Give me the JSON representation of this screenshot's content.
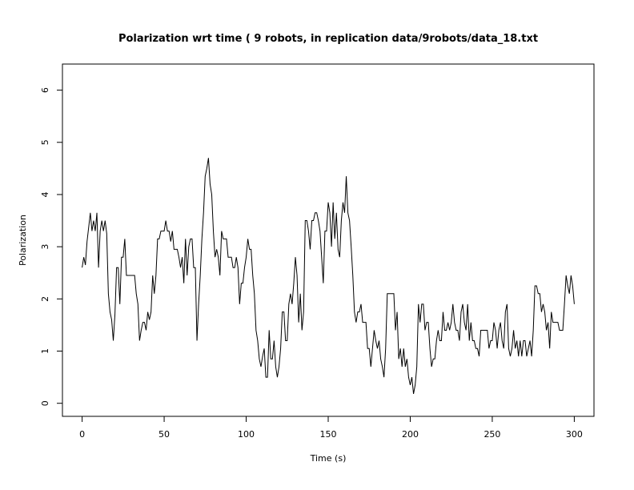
{
  "chart_data": {
    "type": "line",
    "title": "Polarization wrt time ( 9 robots, in replication  data/9robots/data_18.txt",
    "x_label": "Time (s)",
    "y_label": "Polarization",
    "xlim": [
      -12,
      312
    ],
    "ylim": [
      -0.25,
      6.5
    ],
    "xticks": [
      0,
      50,
      100,
      150,
      200,
      250,
      300
    ],
    "yticks": [
      0,
      1,
      2,
      3,
      4,
      5,
      6
    ],
    "grid": false,
    "x": [
      0,
      1,
      2,
      3,
      5,
      6,
      7,
      8,
      9,
      10,
      11,
      12,
      13,
      14,
      15,
      16,
      17,
      18,
      19,
      20,
      21,
      22,
      23,
      24,
      25,
      26,
      27,
      30,
      32,
      33,
      34,
      35,
      36,
      37,
      38,
      39,
      40,
      41,
      42,
      43,
      44,
      45,
      46,
      47,
      48,
      50,
      51,
      52,
      53,
      54,
      55,
      56,
      58,
      59,
      60,
      61,
      62,
      63,
      64,
      65,
      66,
      67,
      68,
      69,
      70,
      71,
      72,
      73,
      74,
      75,
      76,
      77,
      78,
      79,
      80,
      81,
      82,
      83,
      84,
      85,
      86,
      87,
      88,
      89,
      90,
      91,
      92,
      93,
      94,
      95,
      96,
      97,
      98,
      99,
      100,
      101,
      102,
      103,
      104,
      105,
      106,
      107,
      108,
      109,
      110,
      111,
      112,
      113,
      114,
      115,
      116,
      117,
      118,
      119,
      120,
      121,
      122,
      123,
      124,
      125,
      126,
      127,
      128,
      129,
      130,
      131,
      132,
      133,
      134,
      135,
      136,
      137,
      138,
      139,
      140,
      141,
      142,
      143,
      144,
      145,
      146,
      147,
      148,
      149,
      150,
      151,
      152,
      153,
      154,
      155,
      156,
      157,
      158,
      159,
      160,
      161,
      162,
      163,
      164,
      165,
      166,
      167,
      168,
      169,
      170,
      171,
      172,
      173,
      174,
      175,
      176,
      177,
      178,
      179,
      180,
      181,
      182,
      183,
      184,
      185,
      186,
      190,
      191,
      192,
      193,
      194,
      195,
      196,
      197,
      198,
      199,
      200,
      201,
      202,
      203,
      204,
      205,
      206,
      207,
      208,
      209,
      210,
      211,
      212,
      213,
      214,
      215,
      216,
      217,
      218,
      219,
      220,
      221,
      222,
      223,
      224,
      225,
      226,
      227,
      228,
      229,
      230,
      231,
      232,
      233,
      234,
      235,
      236,
      237,
      238,
      239,
      240,
      241,
      242,
      243,
      247,
      248,
      249,
      250,
      251,
      252,
      253,
      254,
      255,
      256,
      257,
      258,
      259,
      260,
      261,
      262,
      263,
      264,
      265,
      266,
      267,
      268,
      269,
      270,
      271,
      272,
      273,
      274,
      275,
      276,
      277,
      278,
      279,
      280,
      281,
      282,
      283,
      284,
      285,
      286,
      287,
      290,
      291,
      293,
      294,
      295,
      296,
      297,
      298,
      299,
      300
    ],
    "series": [
      {
        "name": "Polarization",
        "color": "#000000",
        "values": [
          2.6,
          2.8,
          2.65,
          3.1,
          3.65,
          3.3,
          3.5,
          3.3,
          3.65,
          2.6,
          3.3,
          3.5,
          3.3,
          3.5,
          3.25,
          2.1,
          1.75,
          1.6,
          1.2,
          1.7,
          2.6,
          2.6,
          1.9,
          2.8,
          2.8,
          3.15,
          2.45,
          2.45,
          2.45,
          2.1,
          1.9,
          1.2,
          1.4,
          1.55,
          1.55,
          1.4,
          1.75,
          1.6,
          1.75,
          2.45,
          2.1,
          2.45,
          3.15,
          3.15,
          3.3,
          3.3,
          3.5,
          3.3,
          3.3,
          3.1,
          3.3,
          2.95,
          2.95,
          2.8,
          2.6,
          2.8,
          2.3,
          3.15,
          2.45,
          3.0,
          3.15,
          3.15,
          2.6,
          2.6,
          1.2,
          1.9,
          2.45,
          3.15,
          3.65,
          4.35,
          4.5,
          4.7,
          4.2,
          4.0,
          3.3,
          2.8,
          2.95,
          2.8,
          2.45,
          3.3,
          3.15,
          3.15,
          3.15,
          2.8,
          2.8,
          2.8,
          2.6,
          2.6,
          2.8,
          2.6,
          1.9,
          2.3,
          2.3,
          2.6,
          2.8,
          3.15,
          2.95,
          2.95,
          2.45,
          2.1,
          1.4,
          1.2,
          0.85,
          0.7,
          0.9,
          1.05,
          0.5,
          0.5,
          1.4,
          0.85,
          0.85,
          1.2,
          0.7,
          0.5,
          0.7,
          1.05,
          1.75,
          1.75,
          1.2,
          1.2,
          1.9,
          2.1,
          1.9,
          2.3,
          2.8,
          2.45,
          1.55,
          2.1,
          1.4,
          1.75,
          3.5,
          3.5,
          3.3,
          2.95,
          3.5,
          3.5,
          3.65,
          3.65,
          3.5,
          3.3,
          2.8,
          2.3,
          3.3,
          3.3,
          3.85,
          3.65,
          3.0,
          3.85,
          3.15,
          3.65,
          2.95,
          2.8,
          3.5,
          3.85,
          3.65,
          4.35,
          3.65,
          3.5,
          3.0,
          2.45,
          1.75,
          1.55,
          1.75,
          1.75,
          1.9,
          1.55,
          1.55,
          1.55,
          1.05,
          1.05,
          0.7,
          1.05,
          1.4,
          1.2,
          1.05,
          1.2,
          0.85,
          0.7,
          0.5,
          1.05,
          2.1,
          2.1,
          1.4,
          1.75,
          0.85,
          1.05,
          0.7,
          1.05,
          0.7,
          0.85,
          0.5,
          0.35,
          0.5,
          0.18,
          0.35,
          0.7,
          1.9,
          1.55,
          1.9,
          1.9,
          1.4,
          1.55,
          1.55,
          1.05,
          0.7,
          0.85,
          0.85,
          1.2,
          1.4,
          1.2,
          1.2,
          1.75,
          1.4,
          1.4,
          1.55,
          1.4,
          1.55,
          1.9,
          1.55,
          1.4,
          1.4,
          1.2,
          1.75,
          1.9,
          1.55,
          1.4,
          1.9,
          1.2,
          1.55,
          1.2,
          1.2,
          1.05,
          1.05,
          0.9,
          1.4,
          1.4,
          1.05,
          1.2,
          1.2,
          1.55,
          1.4,
          1.05,
          1.4,
          1.55,
          1.2,
          1.05,
          1.75,
          1.9,
          1.05,
          0.9,
          1.05,
          1.4,
          1.05,
          1.2,
          0.9,
          1.2,
          0.9,
          1.2,
          1.2,
          0.9,
          1.05,
          1.2,
          0.9,
          1.4,
          2.25,
          2.25,
          2.1,
          2.1,
          1.75,
          1.9,
          1.75,
          1.4,
          1.55,
          1.05,
          1.75,
          1.55,
          1.55,
          1.4,
          1.4,
          1.9,
          2.45,
          2.25,
          2.1,
          2.45,
          2.25,
          1.9
        ]
      }
    ]
  }
}
